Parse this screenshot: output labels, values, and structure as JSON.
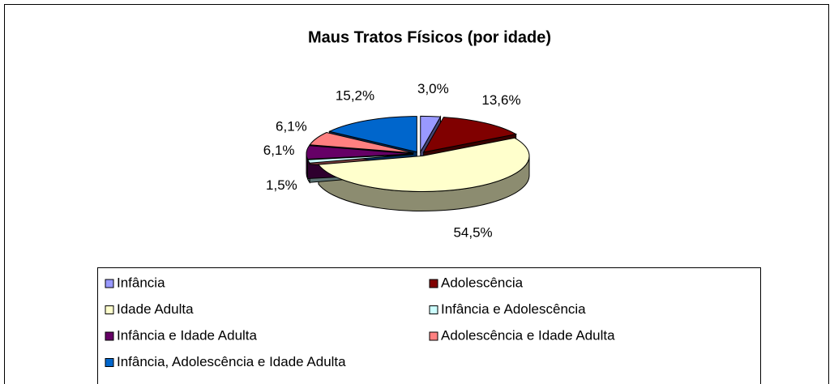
{
  "chart_data": {
    "type": "pie",
    "title": "Maus Tratos Físicos (por idade)",
    "categories": [
      "Infância",
      "Adolescência",
      "Idade Adulta",
      "Infância e Adolescência",
      "Infância e Idade Adulta",
      "Adolescência e Idade Adulta",
      "Infância, Adolescência e Idade Adulta"
    ],
    "values": [
      3.0,
      13.6,
      54.5,
      1.5,
      6.1,
      6.1,
      15.2
    ],
    "value_labels": [
      "3,0%",
      "13,6%",
      "54,5%",
      "1,5%",
      "6,1%",
      "6,1%",
      "15,2%"
    ],
    "colors": [
      "#9999ff",
      "#800000",
      "#ffffcc",
      "#ccffff",
      "#660066",
      "#ff8080",
      "#0066cc"
    ],
    "legend": "bottom"
  }
}
